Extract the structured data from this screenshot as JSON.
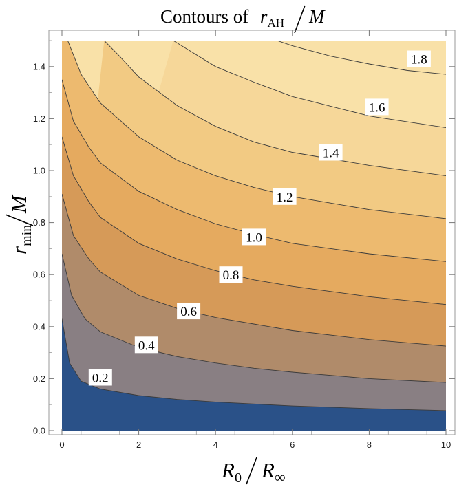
{
  "chart_data": {
    "type": "contour",
    "title": {
      "prefix": "Contours of",
      "numerator_main": "r",
      "numerator_sub": "AH",
      "denominator": "M"
    },
    "xlabel": {
      "main": "R",
      "sub": "0",
      "den_main": "R",
      "den_sub": "∞"
    },
    "ylabel": {
      "main": "r",
      "sub": "min",
      "den": "M"
    },
    "xlim": [
      0,
      10
    ],
    "ylim": [
      0,
      1.5
    ],
    "x_ticks": [
      {
        "value": 0,
        "label": "0"
      },
      {
        "value": 2,
        "label": "2"
      },
      {
        "value": 4,
        "label": "4"
      },
      {
        "value": 6,
        "label": "6"
      },
      {
        "value": 8,
        "label": "8"
      },
      {
        "value": 10,
        "label": "10"
      }
    ],
    "y_ticks": [
      {
        "value": 0.0,
        "label": "0.0"
      },
      {
        "value": 0.2,
        "label": "0.2"
      },
      {
        "value": 0.4,
        "label": "0.4"
      },
      {
        "value": 0.6,
        "label": "0.6"
      },
      {
        "value": 0.8,
        "label": "0.8"
      },
      {
        "value": 1.0,
        "label": "1.0"
      },
      {
        "value": 1.2,
        "label": "1.2"
      },
      {
        "value": 1.4,
        "label": "1.4"
      }
    ],
    "levels": [
      {
        "level": 0.2,
        "label": "0.2",
        "points": [
          [
            0,
            0.43
          ],
          [
            0.2,
            0.26
          ],
          [
            0.5,
            0.19
          ],
          [
            1,
            0.16
          ],
          [
            2,
            0.135
          ],
          [
            3,
            0.12
          ],
          [
            4,
            0.11
          ],
          [
            6,
            0.095
          ],
          [
            8,
            0.085
          ],
          [
            10,
            0.077
          ]
        ],
        "label_at": [
          1.0,
          0.205
        ]
      },
      {
        "level": 0.4,
        "label": "0.4",
        "points": [
          [
            0,
            0.68
          ],
          [
            0.25,
            0.52
          ],
          [
            0.6,
            0.43
          ],
          [
            1,
            0.38
          ],
          [
            2,
            0.32
          ],
          [
            3,
            0.285
          ],
          [
            4,
            0.26
          ],
          [
            5,
            0.24
          ],
          [
            6,
            0.225
          ],
          [
            8,
            0.2
          ],
          [
            10,
            0.185
          ]
        ],
        "label_at": [
          2.2,
          0.33
        ]
      },
      {
        "level": 0.6,
        "label": "0.6",
        "points": [
          [
            0,
            0.91
          ],
          [
            0.3,
            0.75
          ],
          [
            0.7,
            0.66
          ],
          [
            1,
            0.61
          ],
          [
            2,
            0.52
          ],
          [
            3,
            0.47
          ],
          [
            4,
            0.435
          ],
          [
            6,
            0.385
          ],
          [
            8,
            0.35
          ],
          [
            10,
            0.325
          ]
        ],
        "label_at": [
          3.3,
          0.46
        ]
      },
      {
        "level": 0.8,
        "label": "0.8",
        "points": [
          [
            0,
            1.13
          ],
          [
            0.3,
            0.98
          ],
          [
            0.7,
            0.88
          ],
          [
            1,
            0.82
          ],
          [
            2,
            0.72
          ],
          [
            3,
            0.66
          ],
          [
            4,
            0.615
          ],
          [
            5,
            0.58
          ],
          [
            6,
            0.555
          ],
          [
            8,
            0.515
          ],
          [
            10,
            0.485
          ]
        ],
        "label_at": [
          4.4,
          0.6
        ]
      },
      {
        "level": 1.0,
        "label": "1.0",
        "points": [
          [
            0,
            1.35
          ],
          [
            0.3,
            1.19
          ],
          [
            0.7,
            1.09
          ],
          [
            1,
            1.03
          ],
          [
            2,
            0.92
          ],
          [
            3,
            0.85
          ],
          [
            4,
            0.795
          ],
          [
            5,
            0.755
          ],
          [
            6,
            0.72
          ],
          [
            8,
            0.68
          ],
          [
            10,
            0.65
          ]
        ],
        "label_at": [
          5.0,
          0.745
        ]
      },
      {
        "level": 1.2,
        "label": "1.2",
        "points": [
          [
            0,
            1.5
          ],
          [
            0.15,
            1.5
          ],
          [
            0.5,
            1.37
          ],
          [
            1,
            1.26
          ],
          [
            2,
            1.13
          ],
          [
            3,
            1.04
          ],
          [
            4,
            0.98
          ],
          [
            5,
            0.935
          ],
          [
            6,
            0.9
          ],
          [
            8,
            0.85
          ],
          [
            10,
            0.815
          ]
        ],
        "label_at": [
          5.8,
          0.9
        ]
      },
      {
        "level": 1.4,
        "label": "1.4",
        "points": [
          [
            1.1,
            1.5
          ],
          [
            1.5,
            1.44
          ],
          [
            2,
            1.36
          ],
          [
            3,
            1.25
          ],
          [
            4,
            1.17
          ],
          [
            5,
            1.11
          ],
          [
            6,
            1.07
          ],
          [
            8,
            1.02
          ],
          [
            10,
            0.98
          ]
        ],
        "label_at": [
          7.0,
          1.07
        ]
      },
      {
        "level": 1.6,
        "label": "1.6",
        "points": [
          [
            2.9,
            1.5
          ],
          [
            4,
            1.4
          ],
          [
            5,
            1.34
          ],
          [
            6,
            1.285
          ],
          [
            8,
            1.21
          ],
          [
            10,
            1.165
          ]
        ],
        "label_at": [
          8.2,
          1.245
        ]
      },
      {
        "level": 1.8,
        "label": "1.8",
        "points": [
          [
            5.6,
            1.5
          ],
          [
            6,
            1.48
          ],
          [
            7,
            1.44
          ],
          [
            8,
            1.41
          ],
          [
            9,
            1.385
          ],
          [
            10,
            1.37
          ]
        ],
        "label_at": [
          9.3,
          1.43
        ]
      }
    ],
    "band_colors": [
      "#2a5188",
      "#5a6c9c",
      "#897f83",
      "#b08b6a",
      "#d69a58",
      "#e5aa5f",
      "#edba6f",
      "#f2ca83",
      "#f6d799",
      "#f9e1a8"
    ],
    "line_color": "#3b3b3b",
    "grid": false,
    "legend": "none"
  }
}
